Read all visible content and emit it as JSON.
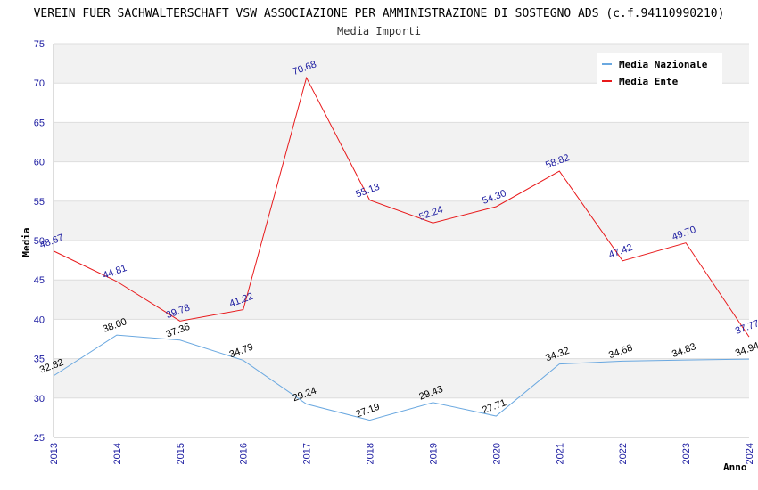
{
  "chart_data": {
    "type": "line",
    "title": "VEREIN FUER SACHWALTERSCHAFT VSW ASSOCIAZIONE PER AMMINISTRAZIONE DI SOSTEGNO ADS (c.f.94110990210)",
    "subtitle": "Media Importi",
    "xlabel": "Anno",
    "ylabel": "Media",
    "x": [
      "2013",
      "2014",
      "2015",
      "2016",
      "2017",
      "2018",
      "2019",
      "2020",
      "2021",
      "2022",
      "2023",
      "2024"
    ],
    "ylim": [
      25,
      75
    ],
    "yticks": [
      "25",
      "30",
      "35",
      "40",
      "45",
      "50",
      "55",
      "60",
      "65",
      "70",
      "75"
    ],
    "grid": true,
    "legend_position": "top-right",
    "series": [
      {
        "name": "Media Nazionale",
        "color": "#6aa8e0",
        "values": [
          32.82,
          38.0,
          37.36,
          34.79,
          29.24,
          27.19,
          29.43,
          27.71,
          34.32,
          34.68,
          34.83,
          34.94
        ],
        "labels": [
          "32.82",
          "38.00",
          "37.36",
          "34.79",
          "29.24",
          "27.19",
          "29.43",
          "27.71",
          "34.32",
          "34.68",
          "34.83",
          "34.94"
        ]
      },
      {
        "name": "Media Ente",
        "color": "#e8191b",
        "values": [
          48.67,
          44.81,
          39.78,
          41.22,
          70.68,
          55.13,
          52.24,
          54.3,
          58.82,
          47.42,
          49.7,
          37.77
        ],
        "labels": [
          "48.67",
          "44.81",
          "39.78",
          "41.22",
          "70.68",
          "55.13",
          "52.24",
          "54.30",
          "58.82",
          "47.42",
          "49.70",
          "37.77"
        ]
      }
    ]
  }
}
